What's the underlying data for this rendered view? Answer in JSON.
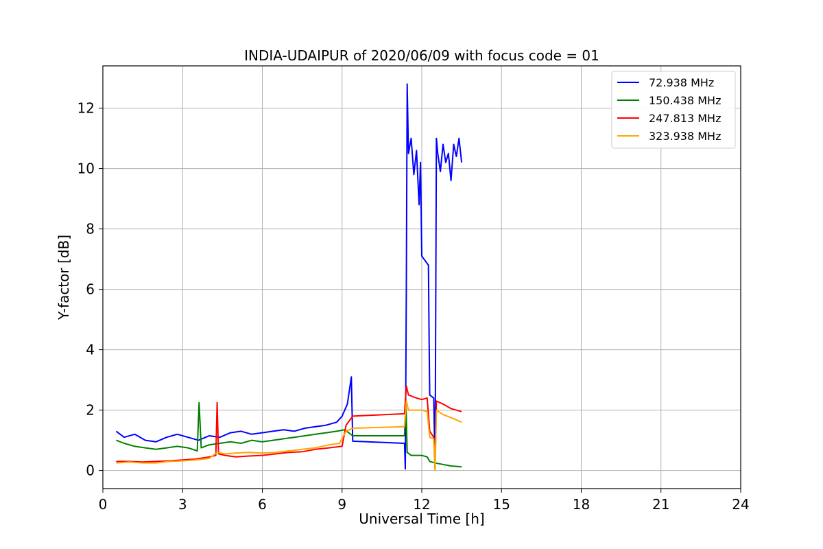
{
  "chart_data": {
    "type": "line",
    "title": "INDIA-UDAIPUR of 2020/06/09 with focus code = 01",
    "xlabel": "Universal Time [h]",
    "ylabel": "Y-factor [dB]",
    "xlim": [
      0,
      24
    ],
    "ylim": [
      -0.6,
      13.4
    ],
    "xticks": [
      0,
      3,
      6,
      9,
      12,
      15,
      18,
      21,
      24
    ],
    "xtick_labels": [
      "0",
      "3",
      "6",
      "9",
      "12",
      "15",
      "18",
      "21",
      "24"
    ],
    "yticks": [
      0,
      2,
      4,
      6,
      8,
      10,
      12
    ],
    "ytick_labels": [
      "0",
      "2",
      "4",
      "6",
      "8",
      "10",
      "12"
    ],
    "grid": true,
    "legend_position": "top-right",
    "series": [
      {
        "name": " 72.938 MHz",
        "color": "#0000ff",
        "x": [
          0.5,
          0.8,
          1.2,
          1.6,
          2.0,
          2.4,
          2.8,
          3.2,
          3.6,
          4.0,
          4.4,
          4.8,
          5.2,
          5.6,
          6.0,
          6.4,
          6.8,
          7.2,
          7.6,
          8.0,
          8.4,
          8.8,
          9.0,
          9.2,
          9.35,
          9.4,
          11.35,
          11.38,
          11.42,
          11.45,
          11.5,
          11.6,
          11.7,
          11.8,
          11.9,
          11.95,
          12.0,
          12.25,
          12.28,
          12.3,
          12.45,
          12.5,
          12.55,
          12.6,
          12.7,
          12.8,
          12.9,
          13.0,
          13.1,
          13.2,
          13.3,
          13.4,
          13.5
        ],
        "y": [
          1.3,
          1.1,
          1.2,
          1.0,
          0.95,
          1.1,
          1.2,
          1.1,
          1.0,
          1.15,
          1.1,
          1.25,
          1.3,
          1.2,
          1.25,
          1.3,
          1.35,
          1.3,
          1.4,
          1.45,
          1.5,
          1.6,
          1.8,
          2.2,
          3.1,
          0.97,
          0.9,
          0.05,
          6.2,
          12.8,
          10.5,
          11.0,
          9.8,
          10.6,
          8.8,
          10.2,
          7.1,
          6.8,
          4.1,
          2.5,
          2.4,
          0.05,
          11.0,
          10.5,
          9.9,
          10.8,
          10.2,
          10.5,
          9.6,
          10.8,
          10.4,
          11.0,
          10.2
        ]
      },
      {
        "name": "150.438 MHz",
        "color": "#008000",
        "x": [
          0.5,
          0.8,
          1.2,
          1.6,
          2.0,
          2.4,
          2.8,
          3.2,
          3.55,
          3.62,
          3.7,
          4.0,
          4.4,
          4.8,
          5.2,
          5.6,
          6.0,
          6.4,
          6.8,
          7.2,
          7.6,
          8.0,
          8.4,
          8.8,
          9.1,
          9.4,
          11.35,
          11.4,
          11.45,
          11.6,
          12.0,
          12.2,
          12.3,
          12.5,
          12.8,
          13.1,
          13.5
        ],
        "y": [
          1.0,
          0.9,
          0.8,
          0.75,
          0.7,
          0.75,
          0.8,
          0.75,
          0.65,
          2.25,
          0.75,
          0.85,
          0.9,
          0.95,
          0.9,
          1.0,
          0.95,
          1.0,
          1.05,
          1.1,
          1.15,
          1.2,
          1.25,
          1.3,
          1.35,
          1.15,
          1.15,
          2.3,
          0.6,
          0.5,
          0.5,
          0.45,
          0.3,
          0.25,
          0.2,
          0.15,
          0.12
        ]
      },
      {
        "name": "247.813 MHz",
        "color": "#ff0000",
        "x": [
          0.5,
          1.0,
          1.5,
          2.0,
          2.5,
          3.0,
          3.5,
          4.0,
          4.25,
          4.3,
          4.35,
          4.6,
          5.0,
          5.5,
          6.0,
          6.5,
          7.0,
          7.5,
          8.0,
          8.5,
          9.0,
          9.15,
          9.4,
          11.35,
          11.42,
          11.5,
          11.8,
          12.0,
          12.2,
          12.3,
          12.45,
          12.5,
          12.55,
          12.8,
          13.1,
          13.5
        ],
        "y": [
          0.3,
          0.3,
          0.28,
          0.3,
          0.32,
          0.35,
          0.38,
          0.45,
          0.5,
          2.25,
          0.55,
          0.5,
          0.45,
          0.48,
          0.5,
          0.55,
          0.6,
          0.62,
          0.7,
          0.75,
          0.8,
          1.5,
          1.8,
          1.88,
          2.8,
          2.5,
          2.4,
          2.35,
          2.4,
          1.3,
          1.1,
          0.05,
          2.3,
          2.2,
          2.05,
          1.95
        ]
      },
      {
        "name": "323.938 MHz",
        "color": "#ffa500",
        "x": [
          0.5,
          1.0,
          1.5,
          2.0,
          2.5,
          3.0,
          3.5,
          4.0,
          4.3,
          4.6,
          5.0,
          5.5,
          6.0,
          6.5,
          7.0,
          7.5,
          8.0,
          8.5,
          8.9,
          9.15,
          9.4,
          11.35,
          11.42,
          11.5,
          11.8,
          12.0,
          12.2,
          12.3,
          12.45,
          12.5,
          12.55,
          12.8,
          13.1,
          13.5
        ],
        "y": [
          0.25,
          0.28,
          0.25,
          0.25,
          0.3,
          0.32,
          0.35,
          0.4,
          0.6,
          0.55,
          0.58,
          0.6,
          0.58,
          0.6,
          0.65,
          0.7,
          0.75,
          0.85,
          0.9,
          1.3,
          1.4,
          1.45,
          2.3,
          2.0,
          2.0,
          2.0,
          1.95,
          1.1,
          1.05,
          0.0,
          2.0,
          1.85,
          1.75,
          1.6
        ]
      }
    ]
  }
}
